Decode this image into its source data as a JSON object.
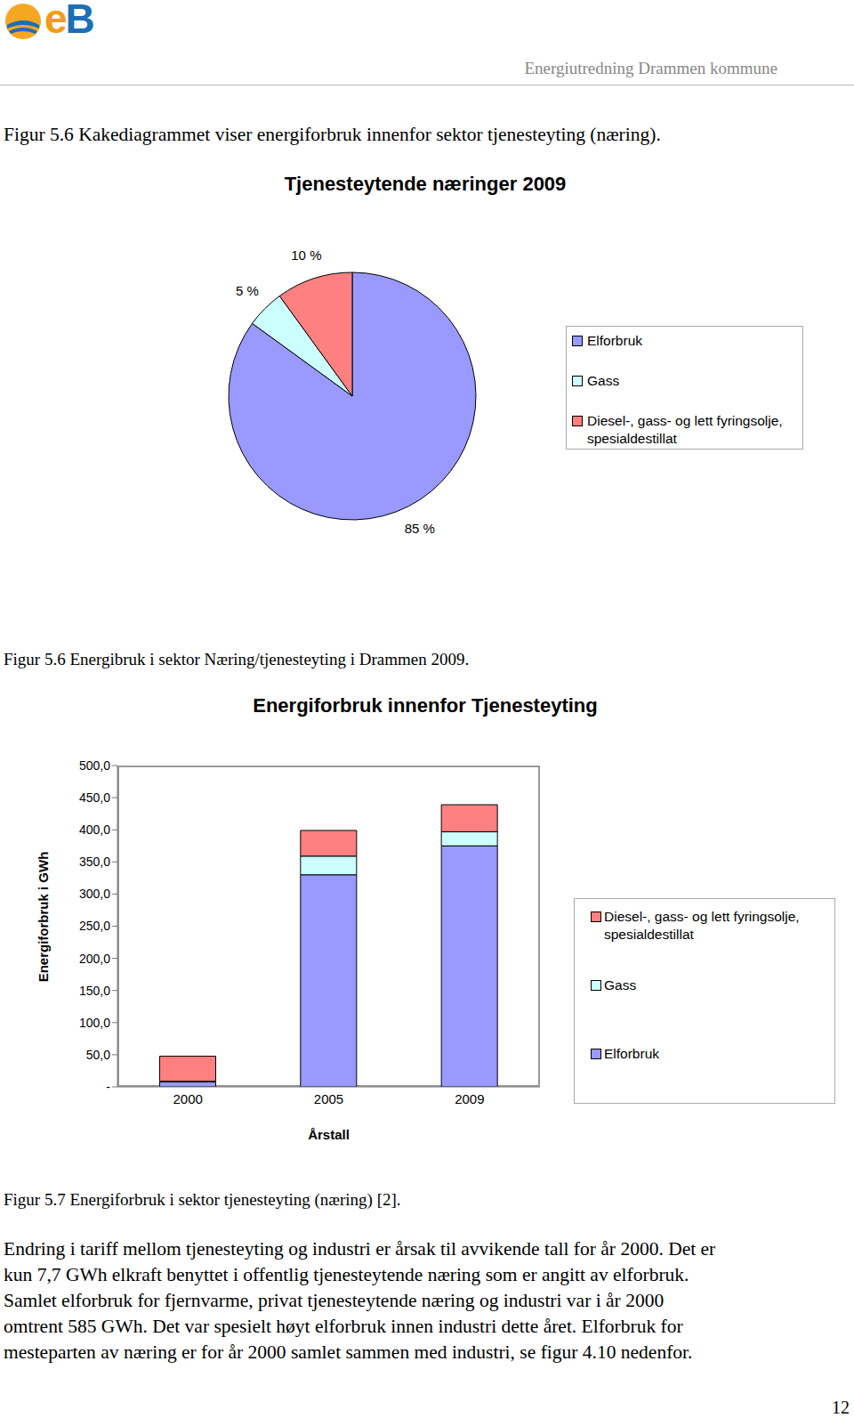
{
  "header": {
    "logo": "eB",
    "title": "Energiutredning Drammen kommune"
  },
  "captions": [
    "Figur 5.6 Kakediagrammet viser energiforbruk innenfor sektor tjenesteyting (næring).",
    "Figur 5.6 Energibruk i sektor Næring/tjenesteyting i Drammen 2009.",
    "Figur 5.7 Energiforbruk i sektor tjenesteyting (næring) [2]."
  ],
  "chart_data": [
    {
      "type": "pie",
      "title": "Tjenesteytende næringer 2009",
      "categories": [
        "Elforbruk",
        "Gass",
        "Diesel-, gass- og lett fyringsolje, spesialdestillat"
      ],
      "values": [
        85,
        5,
        10
      ],
      "value_labels": [
        "85 %",
        "5 %",
        "10 %"
      ],
      "colors": [
        "#9999ff",
        "#ccffff",
        "#ff8080"
      ],
      "data_labels": true,
      "legend": "right"
    },
    {
      "type": "bar",
      "title": "Energiforbruk innenfor Tjenesteyting",
      "x_label": "Årstall",
      "y_label": "Energiforbruk i GWh",
      "categories": [
        "2000",
        "2005",
        "2009"
      ],
      "stacked": true,
      "series": [
        {
          "name": "Elforbruk",
          "color": "#9999ff",
          "values": [
            7.7,
            330,
            375
          ]
        },
        {
          "name": "Gass",
          "color": "#ccffff",
          "values": [
            1,
            29,
            22
          ]
        },
        {
          "name": "Diesel-, gass- og lett fyringsolje, spesialdestillat",
          "color": "#ff8080",
          "values": [
            39,
            40,
            42
          ]
        }
      ],
      "ylim": [
        0,
        500
      ],
      "yticks": [
        {
          "value": 0,
          "label": "-"
        },
        {
          "value": 50,
          "label": "50,0"
        },
        {
          "value": 100,
          "label": "100,0"
        },
        {
          "value": 150,
          "label": "150,0"
        },
        {
          "value": 200,
          "label": "200,0"
        },
        {
          "value": 250,
          "label": "250,0"
        },
        {
          "value": 300,
          "label": "300,0"
        },
        {
          "value": 350,
          "label": "350,0"
        },
        {
          "value": 400,
          "label": "400,0"
        },
        {
          "value": 450,
          "label": "450,0"
        },
        {
          "value": 500,
          "label": "500,0"
        }
      ],
      "legend": "right"
    }
  ],
  "paragraph": [
    "Endring i tariff mellom tjenesteyting og industri er årsak til avvikende tall for år 2000. Det er",
    "kun 7,7 GWh elkraft benyttet i offentlig tjenesteytende næring som er angitt av elforbruk.",
    "Samlet elforbruk for fjernvarme, privat tjenesteytende næring og industri var i år 2000",
    "omtrent 585 GWh. Det var spesielt høyt elforbruk innen industri dette året. Elforbruk for",
    "mesteparten av næring er for år 2000 samlet sammen med industri, se figur 4.10 nedenfor."
  ],
  "page_number": "12"
}
